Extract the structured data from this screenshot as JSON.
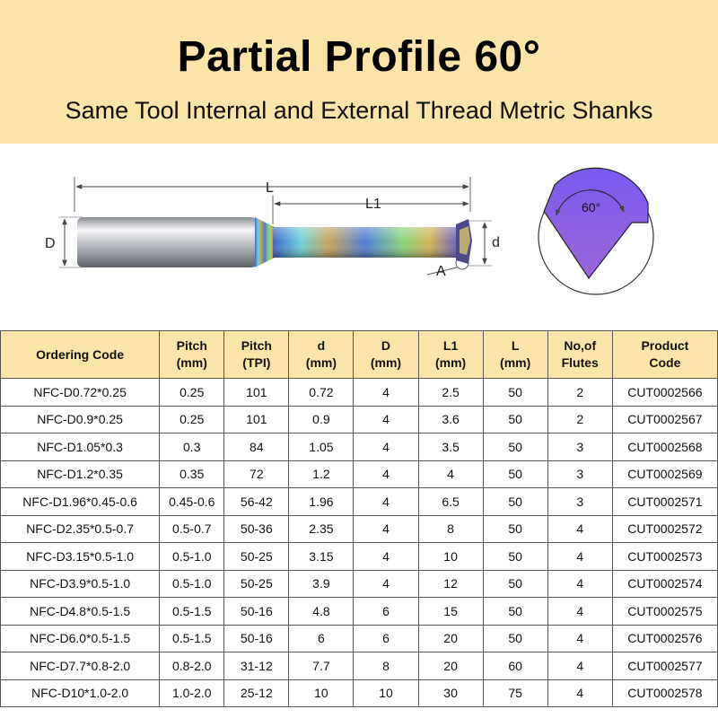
{
  "header": {
    "title": "Partial Profile 60°",
    "subtitle": "Same Tool Internal and External Thread Metric Shanks"
  },
  "diagram": {
    "label_L": "L",
    "label_L1": "L1",
    "label_D": "D",
    "label_d": "d",
    "label_A": "A",
    "angle_label": "60°"
  },
  "table": {
    "headers": [
      [
        "Ordering Code",
        ""
      ],
      [
        "Pitch",
        "(mm)"
      ],
      [
        "Pitch",
        "(TPI)"
      ],
      [
        "d",
        "(mm)"
      ],
      [
        "D",
        "(mm)"
      ],
      [
        "L1",
        "(mm)"
      ],
      [
        "L",
        "(mm)"
      ],
      [
        "No,of",
        "Flutes"
      ],
      [
        "Product",
        "Code"
      ]
    ],
    "rows": [
      [
        "NFC-D0.72*0.25",
        "0.25",
        "101",
        "0.72",
        "4",
        "2.5",
        "50",
        "2",
        "CUT0002566"
      ],
      [
        "NFC-D0.9*0.25",
        "0.25",
        "101",
        "0.9",
        "4",
        "3.6",
        "50",
        "2",
        "CUT0002567"
      ],
      [
        "NFC-D1.05*0.3",
        "0.3",
        "84",
        "1.05",
        "4",
        "3.5",
        "50",
        "3",
        "CUT0002568"
      ],
      [
        "NFC-D1.2*0.35",
        "0.35",
        "72",
        "1.2",
        "4",
        "4",
        "50",
        "3",
        "CUT0002569"
      ],
      [
        "NFC-D1.96*0.45-0.6",
        "0.45-0.6",
        "56-42",
        "1.96",
        "4",
        "6.5",
        "50",
        "3",
        "CUT0002571"
      ],
      [
        "NFC-D2.35*0.5-0.7",
        "0.5-0.7",
        "50-36",
        "2.35",
        "4",
        "8",
        "50",
        "4",
        "CUT0002572"
      ],
      [
        "NFC-D3.15*0.5-1.0",
        "0.5-1.0",
        "50-25",
        "3.15",
        "4",
        "10",
        "50",
        "4",
        "CUT0002573"
      ],
      [
        "NFC-D3.9*0.5-1.0",
        "0.5-1.0",
        "50-25",
        "3.9",
        "4",
        "12",
        "50",
        "4",
        "CUT0002574"
      ],
      [
        "NFC-D4.8*0.5-1.5",
        "0.5-1.5",
        "50-16",
        "4.8",
        "6",
        "15",
        "50",
        "4",
        "CUT0002575"
      ],
      [
        "NFC-D6.0*0.5-1.5",
        "0.5-1.5",
        "50-16",
        "6",
        "6",
        "20",
        "50",
        "4",
        "CUT0002576"
      ],
      [
        "NFC-D7.7*0.8-2.0",
        "0.8-2.0",
        "31-12",
        "7.7",
        "8",
        "20",
        "60",
        "4",
        "CUT0002577"
      ],
      [
        "NFC-D10*1.0-2.0",
        "1.0-2.0",
        "25-12",
        "10",
        "10",
        "30",
        "75",
        "4",
        "CUT0002578"
      ]
    ]
  }
}
